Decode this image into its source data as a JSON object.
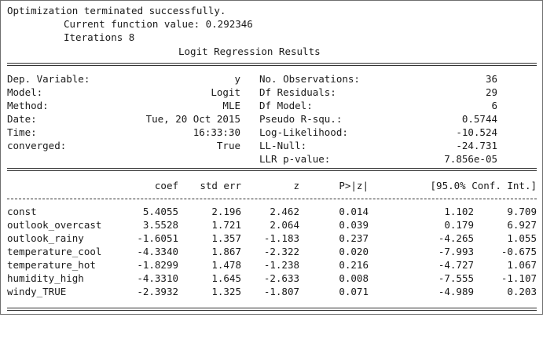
{
  "header": {
    "status": "Optimization terminated successfully.",
    "current_function_value_label": "Current function value: 0.292346",
    "iterations_label": "Iterations 8",
    "title": "Logit Regression Results"
  },
  "summary": {
    "left": [
      {
        "label": "Dep. Variable:",
        "value": "y"
      },
      {
        "label": "Model:",
        "value": "Logit"
      },
      {
        "label": "Method:",
        "value": "MLE"
      },
      {
        "label": "Date:",
        "value": "Tue, 20 Oct 2015"
      },
      {
        "label": "Time:",
        "value": "16:33:30"
      },
      {
        "label": "converged:",
        "value": "True"
      }
    ],
    "right": [
      {
        "label": "No. Observations:",
        "value": "36"
      },
      {
        "label": "Df Residuals:",
        "value": "29"
      },
      {
        "label": "Df Model:",
        "value": "6"
      },
      {
        "label": "Pseudo R-squ.:",
        "value": "0.5744"
      },
      {
        "label": "Log-Likelihood:",
        "value": "-10.524"
      },
      {
        "label": "LL-Null:",
        "value": "-24.731"
      },
      {
        "label": "LLR p-value:",
        "value": "7.856e-05"
      }
    ]
  },
  "coef_table": {
    "headers": [
      "coef",
      "std err",
      "z",
      "P>|z|",
      "[95.0% Conf. Int.]"
    ],
    "rows": [
      {
        "name": "const",
        "coef": "5.4055",
        "std_err": "2.196",
        "z": "2.462",
        "p": "0.014",
        "ci_low": "1.102",
        "ci_high": "9.709"
      },
      {
        "name": "outlook_overcast",
        "coef": "3.5528",
        "std_err": "1.721",
        "z": "2.064",
        "p": "0.039",
        "ci_low": "0.179",
        "ci_high": "6.927"
      },
      {
        "name": "outlook_rainy",
        "coef": "-1.6051",
        "std_err": "1.357",
        "z": "-1.183",
        "p": "0.237",
        "ci_low": "-4.265",
        "ci_high": "1.055"
      },
      {
        "name": "temperature_cool",
        "coef": "-4.3340",
        "std_err": "1.867",
        "z": "-2.322",
        "p": "0.020",
        "ci_low": "-7.993",
        "ci_high": "-0.675"
      },
      {
        "name": "temperature_hot",
        "coef": "-1.8299",
        "std_err": "1.478",
        "z": "-1.238",
        "p": "0.216",
        "ci_low": "-4.727",
        "ci_high": "1.067"
      },
      {
        "name": "humidity_high",
        "coef": "-4.3310",
        "std_err": "1.645",
        "z": "-2.633",
        "p": "0.008",
        "ci_low": "-7.555",
        "ci_high": "-1.107"
      },
      {
        "name": "windy_TRUE",
        "coef": "-2.3932",
        "std_err": "1.325",
        "z": "-1.807",
        "p": "0.071",
        "ci_low": "-4.989",
        "ci_high": "0.203"
      }
    ]
  }
}
